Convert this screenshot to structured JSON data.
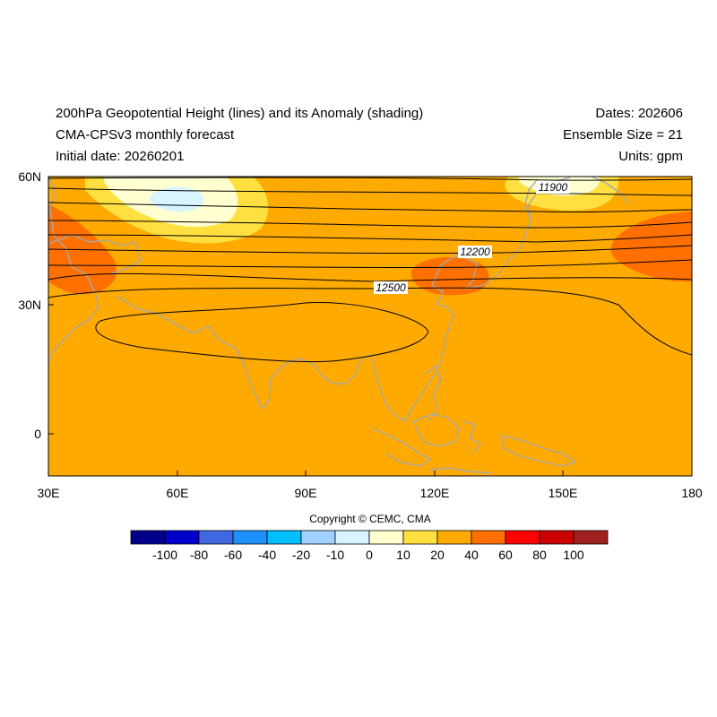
{
  "header": {
    "title": "200hPa Geopotential Height (lines) and its Anomaly (shading)",
    "model": "CMA-CPSv3 monthly forecast",
    "initial": "Initial date: 20260201",
    "dates": "Dates: 202606",
    "ensemble": "Ensemble Size = 21",
    "units": "Units: gpm"
  },
  "map": {
    "lat_ticks": [
      "60N",
      "30N",
      "0"
    ],
    "lon_ticks": [
      "30E",
      "60E",
      "90E",
      "120E",
      "150E",
      "180"
    ],
    "contour_labels": [
      "11900",
      "12200",
      "12500"
    ],
    "colors": {
      "background_anomaly": "#ffaa00",
      "coastline": "#a8a8a8",
      "contour": "#000000"
    }
  },
  "colorbar": {
    "copyright": "Copyright © CEMC, CMA",
    "levels": [
      "-100",
      "-80",
      "-60",
      "-40",
      "-20",
      "-10",
      "0",
      "10",
      "20",
      "40",
      "60",
      "80",
      "100"
    ],
    "colors": [
      "#00008b",
      "#0000cd",
      "#4169e1",
      "#1e90ff",
      "#00bfff",
      "#a0d0ff",
      "#d8f4ff",
      "#ffffd0",
      "#ffe040",
      "#ffaa00",
      "#ff7000",
      "#ff0000",
      "#cc0000",
      "#a02020"
    ]
  }
}
